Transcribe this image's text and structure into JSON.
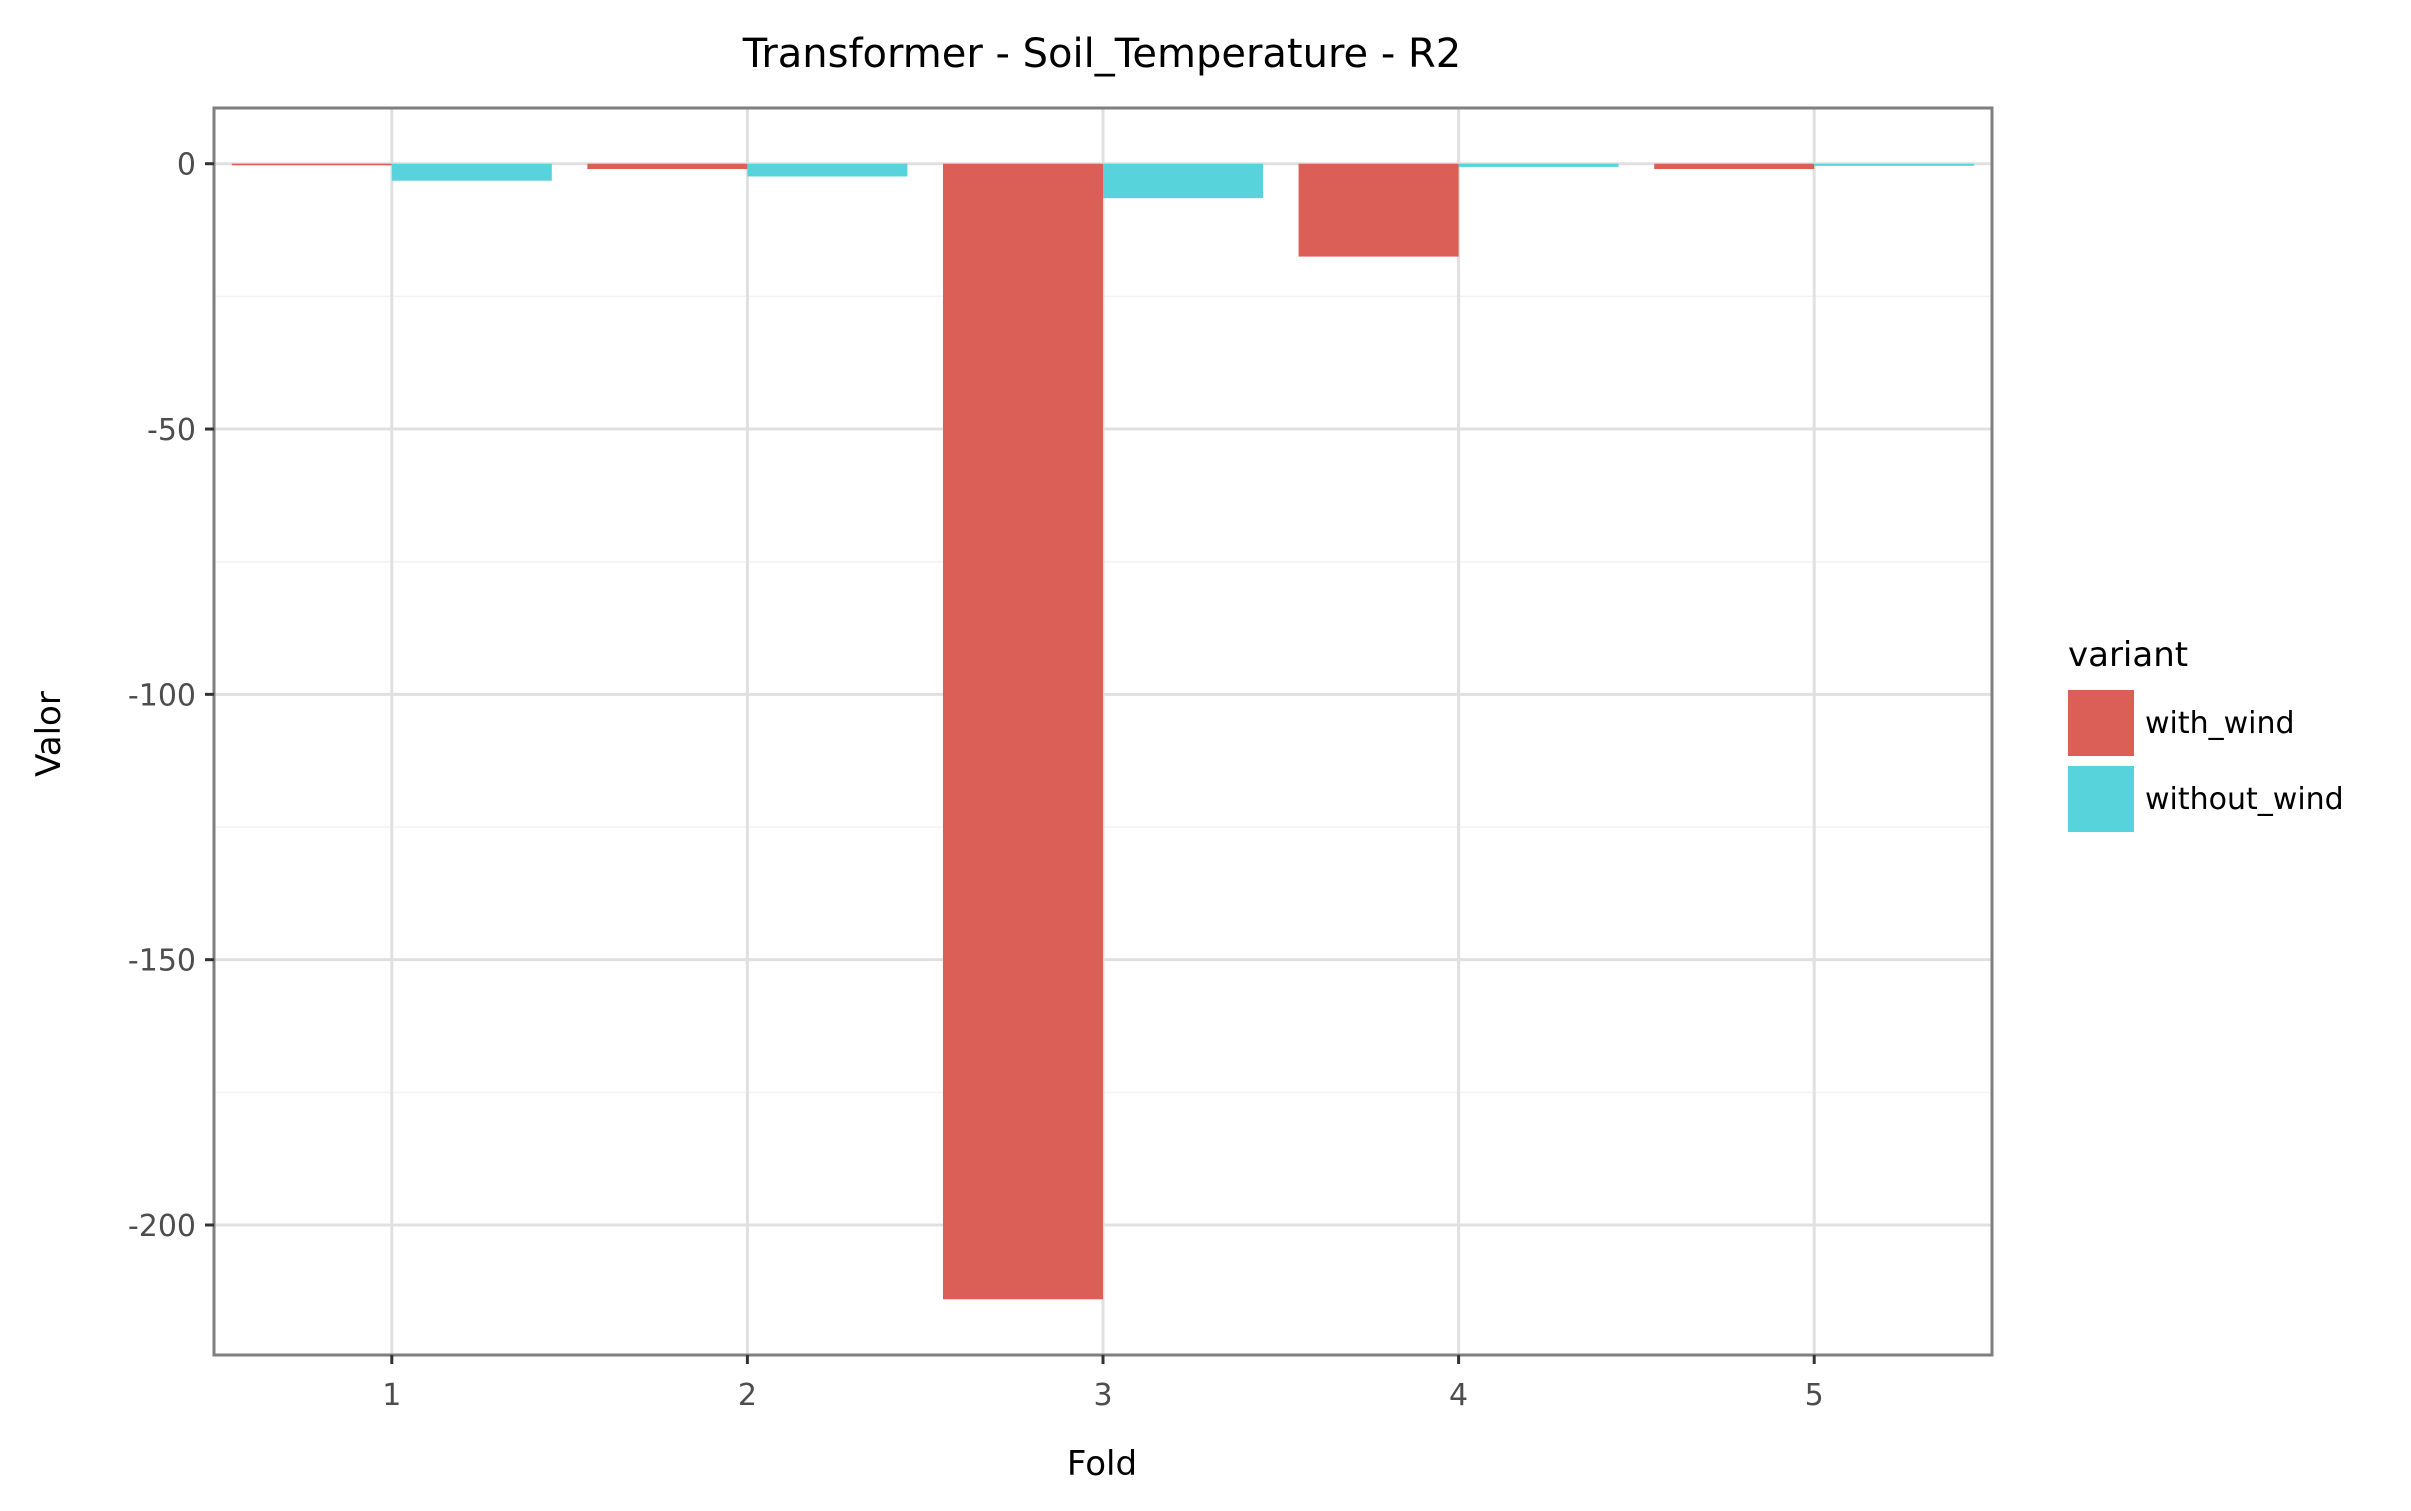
{
  "chart_data": {
    "type": "bar",
    "title": "Transformer - Soil_Temperature - R2",
    "xlabel": "Fold",
    "ylabel": "Valor",
    "categories": [
      "1",
      "2",
      "3",
      "4",
      "5"
    ],
    "series": [
      {
        "name": "with_wind",
        "color": "#db5f57",
        "values": [
          -0.3,
          -1.0,
          -214.0,
          -17.5,
          -1.0
        ]
      },
      {
        "name": "without_wind",
        "color": "#57d3db",
        "values": [
          -3.2,
          -2.4,
          -6.5,
          -0.6,
          -0.4
        ]
      }
    ],
    "yticks": [
      0,
      -50,
      -100,
      -150,
      -200
    ],
    "ytick_labels": [
      "0",
      "-50",
      "-100",
      "-150",
      "-200"
    ],
    "ylim": [
      -224.5,
      10.5
    ],
    "grid": true,
    "legend": {
      "title": "variant",
      "position": "right"
    }
  }
}
